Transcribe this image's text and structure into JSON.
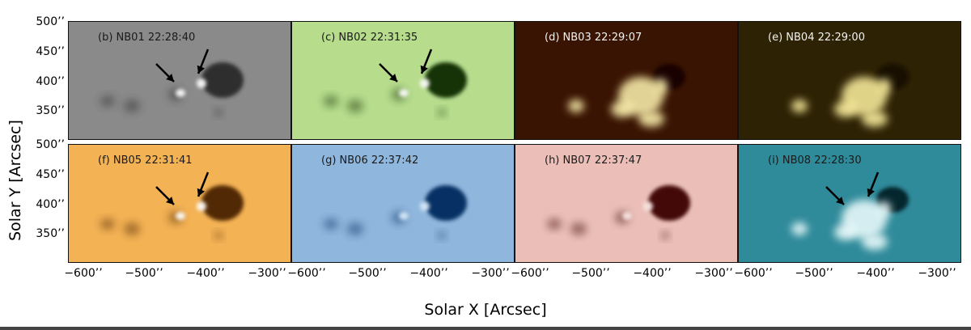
{
  "figure": {
    "y_axis_label": "Solar Y [Arcsec]",
    "x_axis_label": "Solar X [Arcsec]",
    "y_ticks_top": [
      "500’’",
      "450’’",
      "400’’",
      "350’’"
    ],
    "y_ticks_bottom": [
      "500’’",
      "450’’",
      "400’’",
      "350’’"
    ],
    "x_ticks": [
      "−600’’",
      "−500’’",
      "−400’’",
      "−300’’"
    ],
    "panels": [
      {
        "label": "(b) NB01 22:28:40",
        "label_color": "#1a1a1a",
        "bg": "#8a8a8a",
        "spot": "#2a2a2a",
        "bright": "#ffffff",
        "mode": "dark",
        "arrows": 2
      },
      {
        "label": "(c) NB02 22:31:35",
        "label_color": "#1a1a1a",
        "bg": "#b6dc8c",
        "spot": "#102a05",
        "bright": "#ffffff",
        "mode": "dark",
        "arrows": 2
      },
      {
        "label": "(d) NB03 22:29:07",
        "label_color": "#f2f2f2",
        "bg": "#3a1402",
        "spot": "#160500",
        "bright": "#fff4b0",
        "mode": "bright",
        "arrows": 0
      },
      {
        "label": "(e) NB04 22:29:00",
        "label_color": "#f2f2f2",
        "bg": "#2e2204",
        "spot": "#120d00",
        "bright": "#fff2a0",
        "mode": "bright",
        "arrows": 0
      },
      {
        "label": "(f) NB05 22:31:41",
        "label_color": "#1a1a1a",
        "bg": "#f3b254",
        "spot": "#4a2200",
        "bright": "#ffffff",
        "mode": "dark",
        "arrows": 2
      },
      {
        "label": "(g) NB06 22:37:42",
        "label_color": "#1a1a1a",
        "bg": "#8fb6dc",
        "spot": "#002a5e",
        "bright": "#dcecfa",
        "mode": "dark",
        "arrows": 0
      },
      {
        "label": "(h) NB07 22:37:47",
        "label_color": "#1a1a1a",
        "bg": "#ebbfb8",
        "spot": "#3a0404",
        "bright": "#fbe9e6",
        "mode": "dark",
        "arrows": 0
      },
      {
        "label": "(i) NB08 22:28:30",
        "label_color": "#1a1a1a",
        "bg": "#2f8a9a",
        "spot": "#061c22",
        "bright": "#f2ffff",
        "mode": "bright",
        "arrows": 2
      }
    ]
  }
}
